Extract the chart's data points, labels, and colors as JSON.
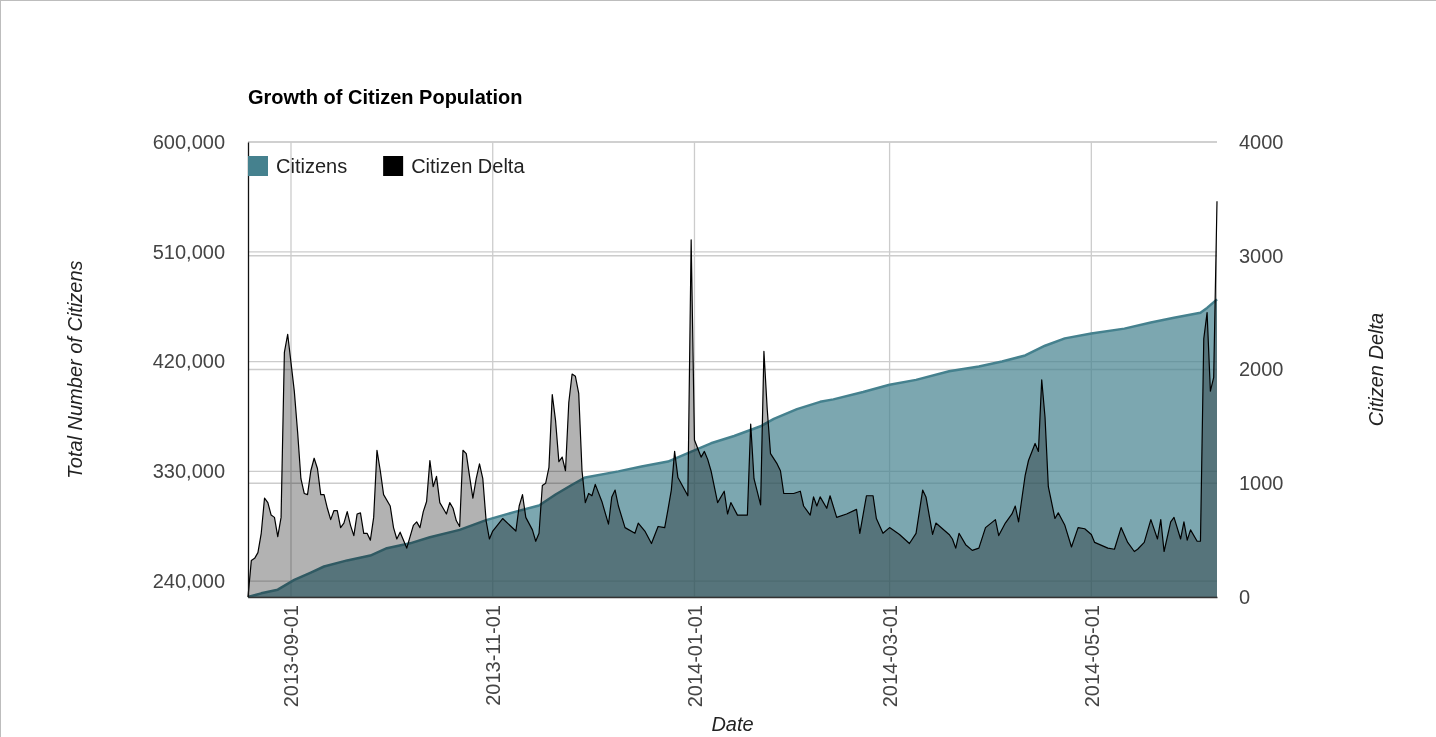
{
  "chart_data": {
    "type": "area",
    "title": "Growth of Citizen Population",
    "xlabel": "Date",
    "ylabel": "Total Number of Citizens",
    "y2label": "Citizen Delta",
    "xlim": [
      "2013-08-19",
      "2014-06-08"
    ],
    "xticks": [
      "2013-09-01",
      "2013-11-01",
      "2014-01-01",
      "2014-03-01",
      "2014-05-01"
    ],
    "ylim": [
      227000,
      600000
    ],
    "yticks": [
      {
        "value": 240000,
        "label": "240,000"
      },
      {
        "value": 330000,
        "label": "330,000"
      },
      {
        "value": 420000,
        "label": "420,000"
      },
      {
        "value": 510000,
        "label": "510,000"
      },
      {
        "value": 600000,
        "label": "600,000"
      }
    ],
    "y2lim": [
      0,
      4000
    ],
    "y2ticks": [
      0,
      1000,
      2000,
      3000,
      4000
    ],
    "grid": true,
    "legend": "top left",
    "series": [
      {
        "name": "Citizens",
        "color": "#45818e",
        "x": [
          "2013-08-19",
          "2013-08-23",
          "2013-08-28",
          "2013-09-02",
          "2013-09-07",
          "2013-09-11",
          "2013-09-18",
          "2013-09-25",
          "2013-09-30",
          "2013-10-07",
          "2013-10-13",
          "2013-10-22",
          "2013-10-30",
          "2013-11-08",
          "2013-11-15",
          "2013-11-20",
          "2013-11-25",
          "2013-11-29",
          "2013-12-09",
          "2013-12-16",
          "2013-12-24",
          "2013-12-30",
          "2014-01-06",
          "2014-01-13",
          "2014-01-21",
          "2014-01-25",
          "2014-02-01",
          "2014-02-08",
          "2014-02-12",
          "2014-02-21",
          "2014-03-01",
          "2014-03-09",
          "2014-03-19",
          "2014-03-28",
          "2014-04-04",
          "2014-04-11",
          "2014-04-17",
          "2014-04-23",
          "2014-05-01",
          "2014-05-11",
          "2014-05-19",
          "2014-05-26",
          "2014-06-03",
          "2014-06-05",
          "2014-06-08"
        ],
        "values": [
          227000,
          230000,
          233000,
          241000,
          247000,
          252000,
          257000,
          261000,
          267000,
          271000,
          276000,
          282000,
          290000,
          297000,
          302000,
          311000,
          319000,
          325000,
          330000,
          334000,
          338000,
          345000,
          353000,
          359000,
          367000,
          373000,
          381000,
          387000,
          389000,
          395000,
          401000,
          405000,
          412000,
          416000,
          420000,
          425000,
          433000,
          439000,
          443000,
          447000,
          452000,
          456000,
          460000,
          464000,
          471000
        ]
      },
      {
        "name": "Citizen Delta",
        "color": "#000000",
        "axis": "y2",
        "x": [
          "2013-08-19",
          "2013-08-20",
          "2013-08-21",
          "2013-08-22",
          "2013-08-23",
          "2013-08-24",
          "2013-08-25",
          "2013-08-26",
          "2013-08-27",
          "2013-08-28",
          "2013-08-29",
          "2013-08-30",
          "2013-08-31",
          "2013-09-01",
          "2013-09-02",
          "2013-09-03",
          "2013-09-04",
          "2013-09-05",
          "2013-09-06",
          "2013-09-07",
          "2013-09-08",
          "2013-09-09",
          "2013-09-10",
          "2013-09-11",
          "2013-09-12",
          "2013-09-13",
          "2013-09-14",
          "2013-09-15",
          "2013-09-16",
          "2013-09-17",
          "2013-09-18",
          "2013-09-19",
          "2013-09-20",
          "2013-09-21",
          "2013-09-22",
          "2013-09-23",
          "2013-09-24",
          "2013-09-25",
          "2013-09-26",
          "2013-09-27",
          "2013-09-28",
          "2013-09-29",
          "2013-10-01",
          "2013-10-02",
          "2013-10-03",
          "2013-10-04",
          "2013-10-06",
          "2013-10-08",
          "2013-10-09",
          "2013-10-10",
          "2013-10-11",
          "2013-10-12",
          "2013-10-13",
          "2013-10-14",
          "2013-10-15",
          "2013-10-16",
          "2013-10-17",
          "2013-10-18",
          "2013-10-19",
          "2013-10-20",
          "2013-10-21",
          "2013-10-22",
          "2013-10-23",
          "2013-10-24",
          "2013-10-25",
          "2013-10-26",
          "2013-10-27",
          "2013-10-28",
          "2013-10-29",
          "2013-10-30",
          "2013-10-31",
          "2013-11-01",
          "2013-11-04",
          "2013-11-08",
          "2013-11-09",
          "2013-11-10",
          "2013-11-11",
          "2013-11-13",
          "2013-11-14",
          "2013-11-15",
          "2013-11-16",
          "2013-11-17",
          "2013-11-18",
          "2013-11-19",
          "2013-11-20",
          "2013-11-21",
          "2013-11-22",
          "2013-11-23",
          "2013-11-24",
          "2013-11-25",
          "2013-11-26",
          "2013-11-27",
          "2013-11-28",
          "2013-11-29",
          "2013-11-30",
          "2013-12-01",
          "2013-12-02",
          "2013-12-04",
          "2013-12-06",
          "2013-12-07",
          "2013-12-08",
          "2013-12-09",
          "2013-12-11",
          "2013-12-14",
          "2013-12-15",
          "2013-12-17",
          "2013-12-19",
          "2013-12-21",
          "2013-12-23",
          "2013-12-24",
          "2013-12-25",
          "2013-12-26",
          "2013-12-27",
          "2013-12-30",
          "2013-12-31",
          "2014-01-01",
          "2014-01-03",
          "2014-01-04",
          "2014-01-05",
          "2014-01-06",
          "2014-01-08",
          "2014-01-10",
          "2014-01-11",
          "2014-01-12",
          "2014-01-14",
          "2014-01-17",
          "2014-01-18",
          "2014-01-19",
          "2014-01-21",
          "2014-01-22",
          "2014-01-23",
          "2014-01-24",
          "2014-01-26",
          "2014-01-27",
          "2014-01-28",
          "2014-01-31",
          "2014-02-02",
          "2014-02-03",
          "2014-02-05",
          "2014-02-06",
          "2014-02-07",
          "2014-02-08",
          "2014-02-10",
          "2014-02-11",
          "2014-02-13",
          "2014-02-16",
          "2014-02-19",
          "2014-02-20",
          "2014-02-22",
          "2014-02-24",
          "2014-02-25",
          "2014-02-27",
          "2014-03-01",
          "2014-03-04",
          "2014-03-07",
          "2014-03-09",
          "2014-03-11",
          "2014-03-12",
          "2014-03-14",
          "2014-03-15",
          "2014-03-19",
          "2014-03-20",
          "2014-03-21",
          "2014-03-22",
          "2014-03-24",
          "2014-03-26",
          "2014-03-28",
          "2014-03-30",
          "2014-04-02",
          "2014-04-03",
          "2014-04-05",
          "2014-04-07",
          "2014-04-08",
          "2014-04-09",
          "2014-04-11",
          "2014-04-12",
          "2014-04-14",
          "2014-04-15",
          "2014-04-16",
          "2014-04-17",
          "2014-04-18",
          "2014-04-20",
          "2014-04-21",
          "2014-04-23",
          "2014-04-25",
          "2014-04-27",
          "2014-04-29",
          "2014-05-01",
          "2014-05-02",
          "2014-05-06",
          "2014-05-08",
          "2014-05-10",
          "2014-05-12",
          "2014-05-14",
          "2014-05-15",
          "2014-05-17",
          "2014-05-19",
          "2014-05-21",
          "2014-05-22",
          "2014-05-23",
          "2014-05-25",
          "2014-05-26",
          "2014-05-28",
          "2014-05-29",
          "2014-05-30",
          "2014-05-31",
          "2014-06-02",
          "2014-06-03",
          "2014-06-04",
          "2014-06-05",
          "2014-06-06",
          "2014-06-07",
          "2014-06-08"
        ],
        "values": [
          0,
          320,
          340,
          390,
          560,
          870,
          830,
          720,
          700,
          530,
          700,
          2150,
          2310,
          2060,
          1810,
          1450,
          1040,
          910,
          900,
          1110,
          1220,
          1130,
          900,
          900,
          780,
          680,
          760,
          760,
          610,
          650,
          750,
          630,
          540,
          730,
          740,
          560,
          560,
          500,
          700,
          1290,
          1110,
          900,
          800,
          610,
          510,
          570,
          430,
          630,
          660,
          610,
          750,
          840,
          1200,
          970,
          1060,
          830,
          780,
          730,
          830,
          780,
          670,
          620,
          1290,
          1260,
          1060,
          870,
          1040,
          1170,
          1040,
          670,
          510,
          580,
          690,
          580,
          800,
          900,
          700,
          590,
          490,
          560,
          980,
          1000,
          1140,
          1780,
          1550,
          1190,
          1230,
          1110,
          1710,
          1960,
          1940,
          1790,
          1110,
          830,
          910,
          890,
          990,
          840,
          640,
          880,
          940,
          800,
          610,
          560,
          650,
          580,
          470,
          620,
          610,
          770,
          940,
          1280,
          1050,
          890,
          3140,
          1380,
          1230,
          1280,
          1210,
          1110,
          830,
          930,
          730,
          830,
          720,
          720,
          1520,
          1040,
          810,
          2160,
          1650,
          1260,
          1170,
          1110,
          910,
          910,
          930,
          800,
          720,
          880,
          800,
          880,
          780,
          890,
          700,
          730,
          770,
          560,
          890,
          890,
          690,
          560,
          610,
          550,
          470,
          560,
          940,
          880,
          550,
          650,
          550,
          510,
          430,
          560,
          460,
          410,
          430,
          610,
          680,
          540,
          650,
          730,
          800,
          660,
          1070,
          1200,
          1350,
          1280,
          1910,
          1580,
          970,
          690,
          740,
          630,
          440,
          610,
          600,
          550,
          480,
          430,
          420,
          610,
          480,
          400,
          420,
          480,
          680,
          510,
          680,
          400,
          660,
          700,
          510,
          660,
          500,
          590,
          490,
          490,
          2270,
          2500,
          1810,
          1930,
          3480
        ]
      }
    ]
  }
}
